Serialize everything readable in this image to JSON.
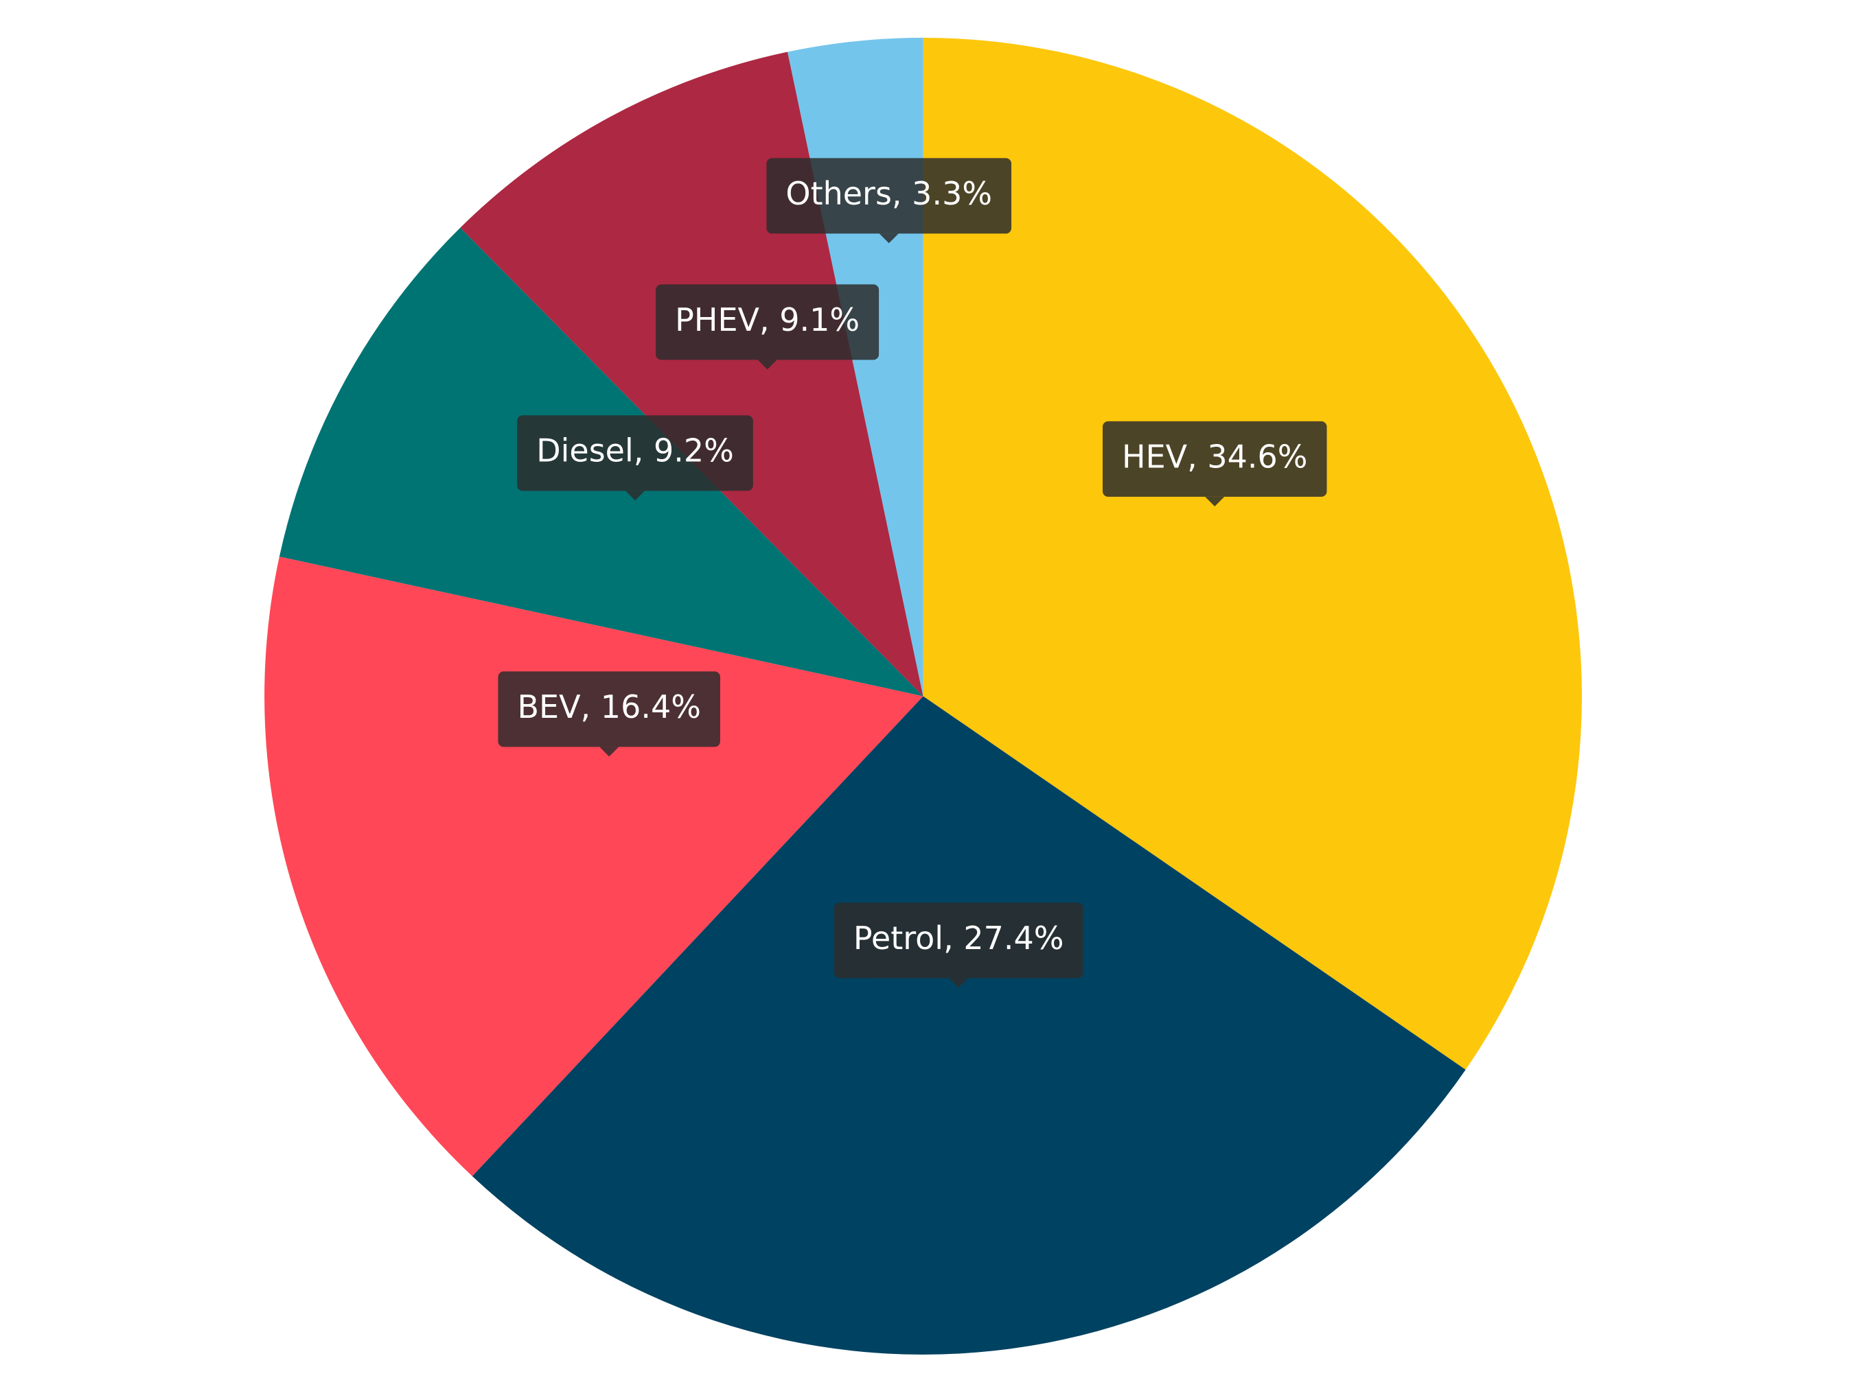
{
  "chart_data": {
    "type": "pie",
    "categories": [
      "HEV",
      "Petrol",
      "BEV",
      "Diesel",
      "PHEV",
      "Others"
    ],
    "values": [
      34.6,
      27.4,
      16.4,
      9.2,
      9.1,
      3.3
    ],
    "value_labels": [
      "HEV, 34.6%",
      "Petrol, 27.4%",
      "BEV, 16.4%",
      "Diesel, 9.2%",
      "PHEV, 9.1%",
      "Others, 3.3%"
    ],
    "colors": [
      "#fdc70c",
      "#004261",
      "#ff4757",
      "#007373",
      "#ad2842",
      "#74c5eb"
    ]
  }
}
